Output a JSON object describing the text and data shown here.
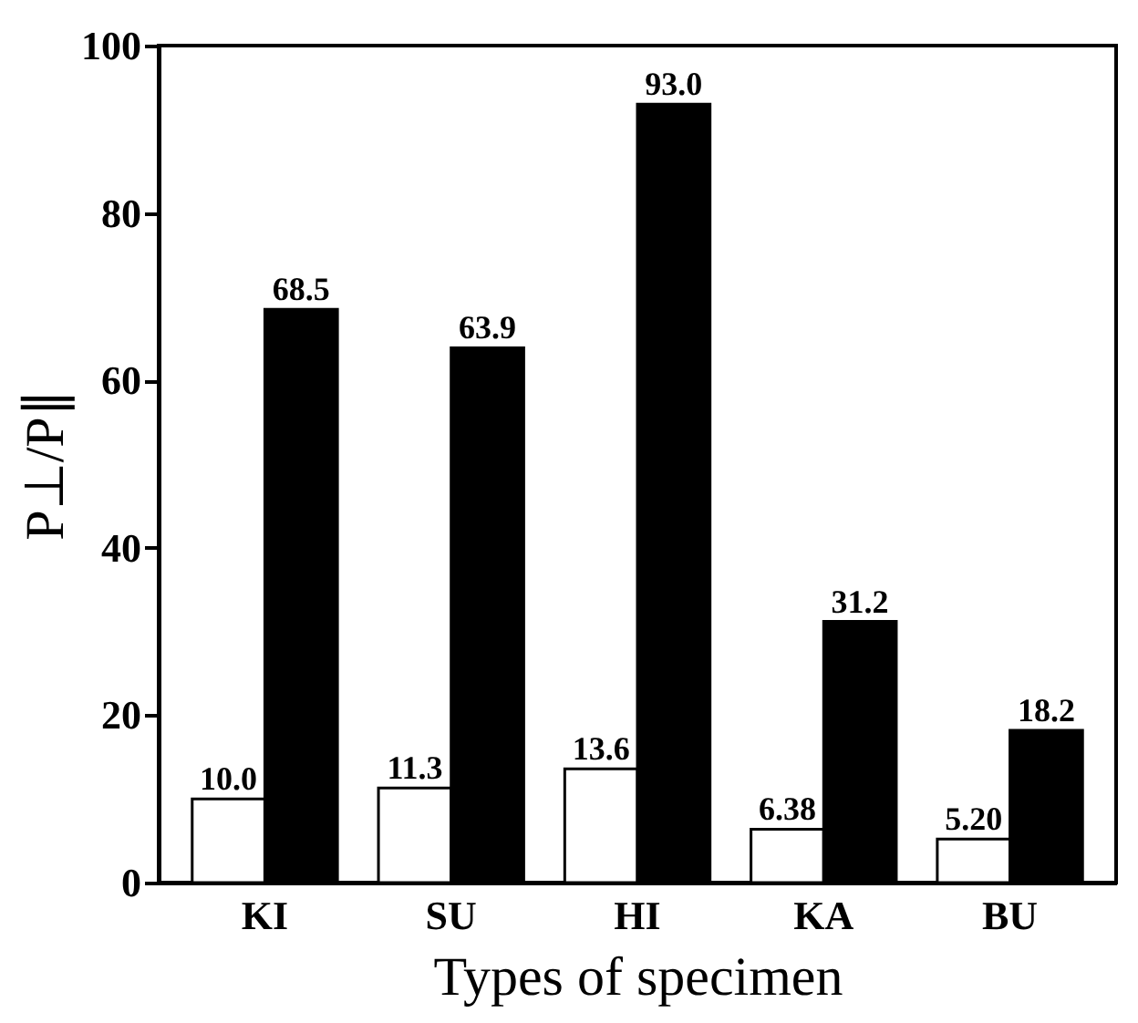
{
  "chart_data": {
    "type": "bar",
    "xlabel": "Types of specimen",
    "ylabel": "P⊥/P∥",
    "categories": [
      "KI",
      "SU",
      "HI",
      "KA",
      "BU"
    ],
    "series": [
      {
        "color": "#ffffff",
        "values": [
          10.0,
          11.3,
          13.6,
          6.38,
          5.2
        ],
        "value_labels": [
          "10.0",
          "11.3",
          "13.6",
          "6.38",
          "5.20"
        ]
      },
      {
        "color": "#000000",
        "values": [
          68.5,
          63.9,
          93.0,
          31.2,
          18.2
        ],
        "value_labels": [
          "68.5",
          "63.9",
          "93.0",
          "31.2",
          "18.2"
        ]
      }
    ],
    "ylim": [
      0,
      100
    ],
    "yticks": [
      0,
      20,
      40,
      60,
      80,
      100
    ],
    "grid": false,
    "legend": false
  }
}
